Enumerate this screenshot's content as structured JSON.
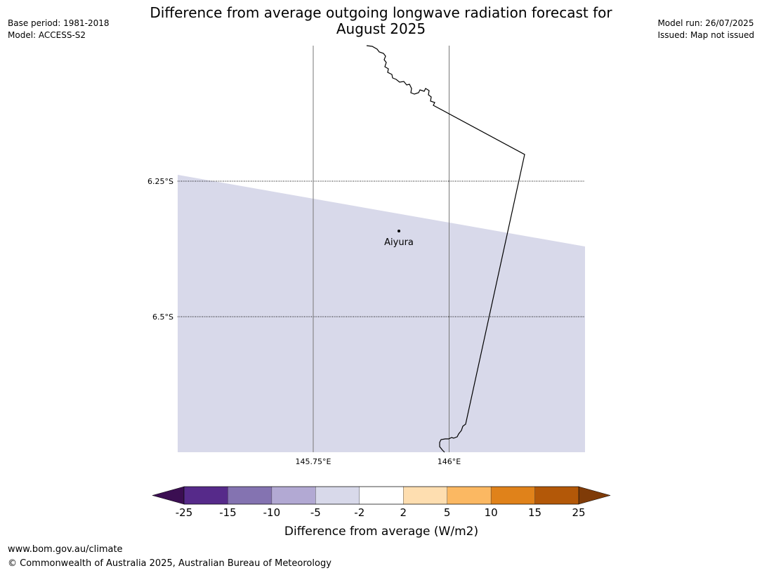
{
  "title_line1": "Difference from average outgoing longwave radiation forecast for",
  "title_line2": "August 2025",
  "meta_left": {
    "base_period": "Base period: 1981-2018",
    "model": "Model: ACCESS-S2"
  },
  "meta_right": {
    "model_run": "Model run: 26/07/2025",
    "issued": "Issued: Map not issued"
  },
  "map": {
    "lat_labels": [
      "6.25°S",
      "6.5°S"
    ],
    "lon_labels": [
      "145.75°E",
      "146°E"
    ],
    "place": "Aiyura",
    "shading_color": "#d8d9ea"
  },
  "legend": {
    "title": "Difference from average (W/m2)",
    "ticks": [
      "-25",
      "-15",
      "-10",
      "-5",
      "-2",
      "2",
      "5",
      "10",
      "15",
      "25"
    ],
    "colors": [
      "#562a8a",
      "#8473b1",
      "#b2a9d3",
      "#d8d9ea",
      "#ffffff",
      "#fedeb0",
      "#fbb862",
      "#e0821a",
      "#b35808"
    ],
    "under_color": "#3b0e52",
    "over_color": "#7f3b08"
  },
  "footer": {
    "url": "www.bom.gov.au/climate",
    "copyright": "© Commonwealth of Australia 2025, Australian Bureau of Meteorology"
  }
}
